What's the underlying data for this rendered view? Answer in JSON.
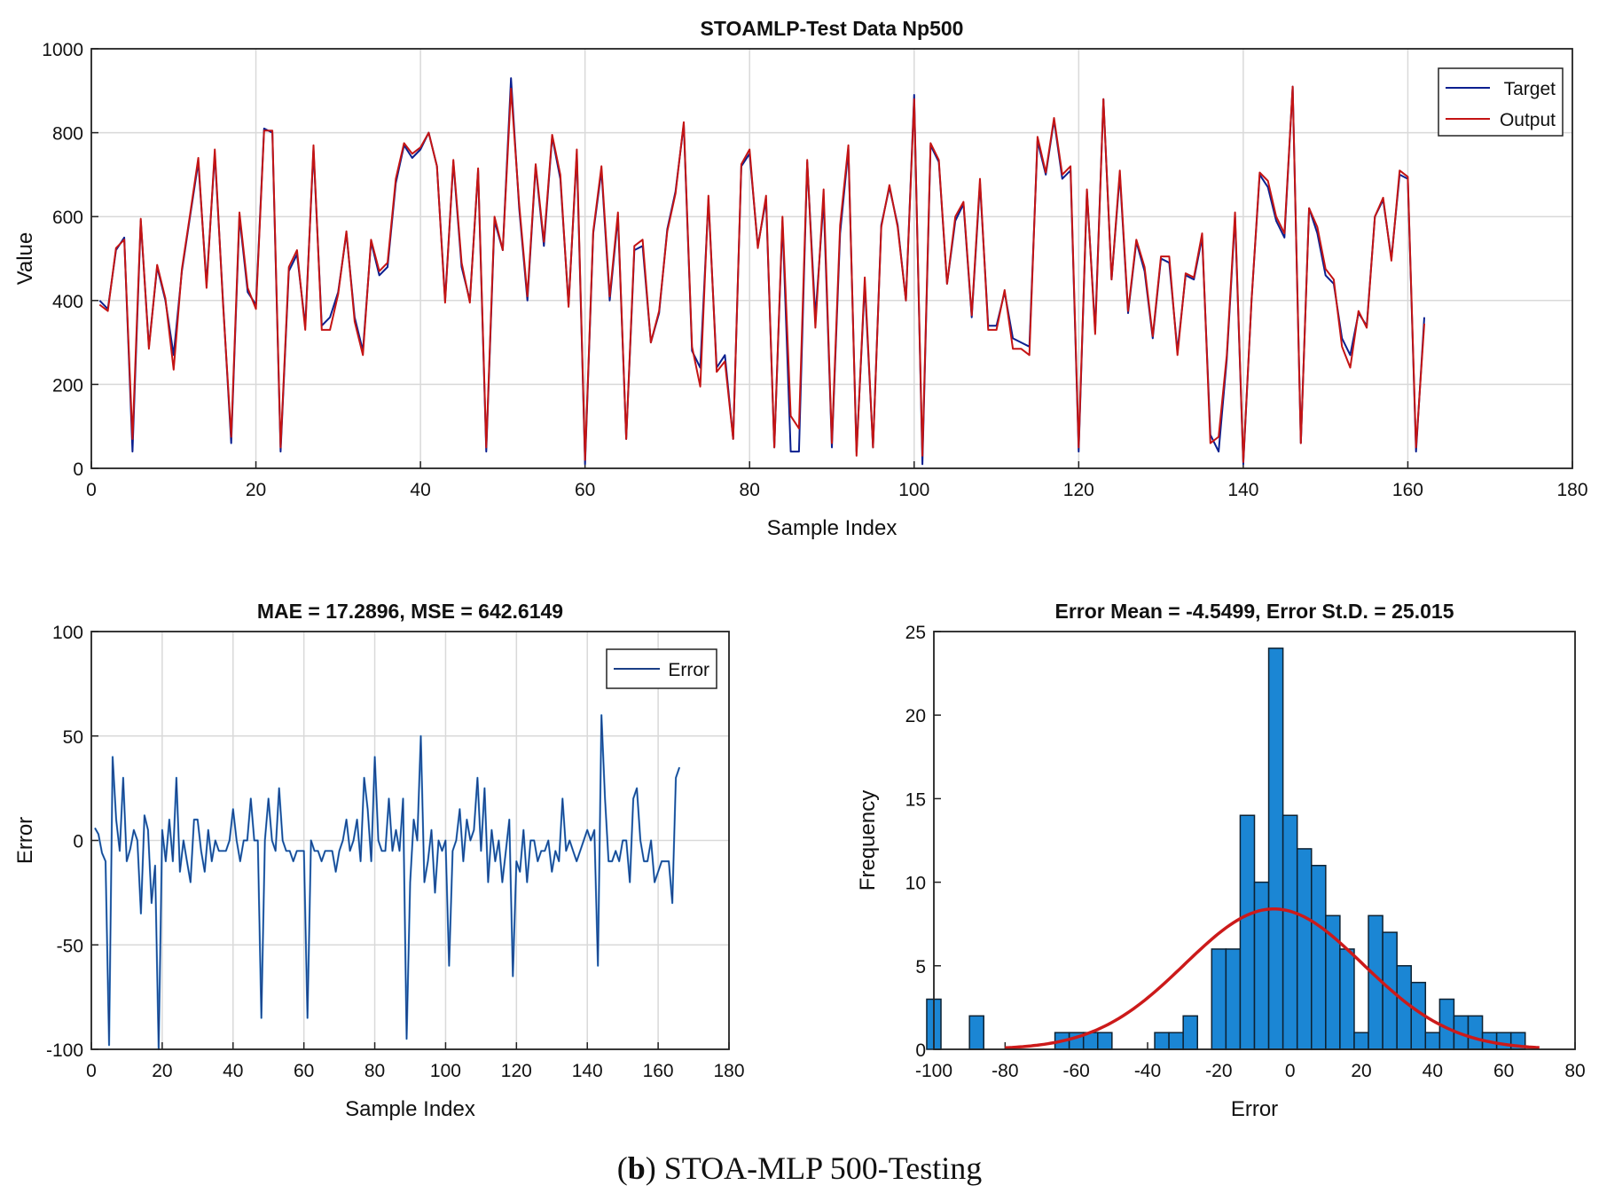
{
  "caption": {
    "letter": "b",
    "text": "STOA-MLP 500-Testing"
  },
  "chart_data": [
    {
      "type": "line",
      "title": "STOAMLP-Test Data Np500",
      "xlabel": "Sample Index",
      "ylabel": "Value",
      "xlim": [
        0,
        180
      ],
      "ylim": [
        0,
        1000
      ],
      "xticks": [
        0,
        20,
        40,
        60,
        80,
        100,
        120,
        140,
        160,
        180
      ],
      "yticks": [
        0,
        200,
        400,
        600,
        800,
        1000
      ],
      "grid": true,
      "legend_position": "top-right",
      "colors": {
        "target": "#0b1f8f",
        "output": "#c41414"
      },
      "series": [
        {
          "name": "Target",
          "values": [
            400,
            380,
            520,
            550,
            40,
            590,
            290,
            480,
            400,
            270,
            470,
            600,
            730,
            440,
            750,
            400,
            60,
            600,
            420,
            390,
            810,
            800,
            40,
            470,
            510,
            340,
            760,
            340,
            360,
            420,
            560,
            360,
            280,
            540,
            460,
            480,
            680,
            770,
            740,
            760,
            800,
            720,
            400,
            730,
            480,
            400,
            710,
            40,
            590,
            520,
            930,
            620,
            400,
            720,
            530,
            790,
            690,
            390,
            750,
            10,
            560,
            710,
            400,
            600,
            70,
            520,
            530,
            300,
            370,
            570,
            660,
            820,
            280,
            240,
            640,
            240,
            270,
            70,
            720,
            750,
            530,
            640,
            50,
            590,
            40,
            40,
            730,
            360,
            640,
            50,
            560,
            760,
            40,
            440,
            50,
            580,
            670,
            580,
            400,
            890,
            10,
            770,
            730,
            440,
            590,
            630,
            360,
            680,
            340,
            340,
            420,
            310,
            300,
            290,
            780,
            700,
            830,
            690,
            710,
            40,
            660,
            330,
            880,
            450,
            700,
            370,
            540,
            470,
            310,
            500,
            490,
            280,
            460,
            450,
            550,
            80,
            40,
            260,
            600,
            10,
            400,
            700,
            670,
            590,
            550,
            910,
            60,
            620,
            560,
            460,
            440,
            310,
            270,
            370,
            340,
            600,
            640,
            500,
            700,
            690,
            40,
            360
          ],
          "color": "target"
        },
        {
          "name": "Output",
          "values": [
            390,
            375,
            525,
            545,
            70,
            595,
            285,
            485,
            405,
            235,
            475,
            605,
            740,
            430,
            760,
            395,
            75,
            610,
            430,
            380,
            805,
            805,
            50,
            480,
            520,
            330,
            770,
            330,
            330,
            415,
            565,
            350,
            270,
            545,
            470,
            490,
            690,
            775,
            750,
            765,
            800,
            720,
            395,
            735,
            490,
            395,
            715,
            50,
            600,
            520,
            905,
            630,
            410,
            725,
            540,
            795,
            700,
            385,
            760,
            20,
            565,
            720,
            410,
            610,
            70,
            530,
            545,
            300,
            375,
            565,
            655,
            825,
            290,
            195,
            650,
            230,
            255,
            70,
            725,
            760,
            525,
            650,
            50,
            600,
            125,
            95,
            735,
            335,
            665,
            60,
            580,
            770,
            30,
            455,
            50,
            575,
            675,
            575,
            400,
            880,
            30,
            775,
            735,
            440,
            600,
            635,
            365,
            690,
            330,
            330,
            425,
            285,
            285,
            270,
            790,
            705,
            835,
            700,
            720,
            50,
            665,
            320,
            880,
            450,
            710,
            375,
            545,
            480,
            315,
            505,
            505,
            270,
            465,
            455,
            560,
            60,
            75,
            270,
            610,
            15,
            400,
            705,
            685,
            600,
            560,
            910,
            60,
            620,
            575,
            475,
            450,
            290,
            240,
            375,
            335,
            600,
            645,
            495,
            710,
            695,
            50,
            345
          ],
          "color": "output"
        }
      ]
    },
    {
      "type": "line",
      "title": "MAE = 17.2896, MSE = 642.6149",
      "xlabel": "Sample Index",
      "ylabel": "Error",
      "xlim": [
        0,
        180
      ],
      "ylim": [
        -100,
        100
      ],
      "xticks": [
        0,
        20,
        40,
        60,
        80,
        100,
        120,
        140,
        160,
        180
      ],
      "yticks": [
        -100,
        -50,
        0,
        50,
        100
      ],
      "grid": true,
      "legend_position": "top-right",
      "colors": {
        "error": "#1a3e86",
        "error_light": "#3d8fd6"
      },
      "series": [
        {
          "name": "Error",
          "values": [
            6,
            3,
            -6,
            -10,
            -98,
            40,
            10,
            -5,
            30,
            -10,
            -4,
            5,
            0,
            -35,
            12,
            5,
            -30,
            -12,
            -100,
            5,
            -10,
            10,
            -10,
            30,
            -15,
            0,
            -10,
            -20,
            10,
            10,
            -5,
            -15,
            5,
            -10,
            0,
            -5,
            -5,
            -5,
            0,
            15,
            0,
            -10,
            0,
            0,
            20,
            0,
            0,
            -85,
            0,
            20,
            0,
            -5,
            25,
            0,
            -5,
            -5,
            -10,
            -5,
            -5,
            -5,
            -85,
            0,
            -5,
            -5,
            -10,
            -5,
            -5,
            -5,
            -15,
            -5,
            0,
            10,
            -5,
            0,
            10,
            -10,
            30,
            15,
            -10,
            40,
            0,
            -5,
            -5,
            20,
            -5,
            5,
            -5,
            20,
            -95,
            -20,
            10,
            0,
            50,
            -20,
            -10,
            5,
            -25,
            0,
            -5,
            0,
            -60,
            -5,
            0,
            15,
            -10,
            10,
            0,
            5,
            30,
            -5,
            25,
            -20,
            5,
            -10,
            0,
            -20,
            -5,
            10,
            -65,
            -10,
            -15,
            5,
            -20,
            0,
            0,
            -10,
            -5,
            -5,
            0,
            -15,
            -5,
            -10,
            20,
            -5,
            0,
            -5,
            -10,
            -5,
            0,
            5,
            0,
            5,
            -60,
            60,
            20,
            -10,
            -10,
            -5,
            -10,
            0,
            0,
            -20,
            20,
            25,
            0,
            -10,
            -10,
            0,
            -20,
            -15,
            -10,
            -10,
            -10,
            -30,
            30,
            35
          ]
        }
      ]
    },
    {
      "type": "bar",
      "title": "Error Mean = -4.5499, Error St.D. = 25.015",
      "xlabel": "Error",
      "ylabel": "Frequency",
      "xlim": [
        -100,
        80
      ],
      "ylim": [
        0,
        25
      ],
      "xticks": [
        -100,
        -80,
        -60,
        -40,
        -20,
        0,
        20,
        40,
        60,
        80
      ],
      "yticks": [
        0,
        5,
        10,
        15,
        20,
        25
      ],
      "grid": false,
      "bin_width": 4,
      "colors": {
        "bar": "#1b86d4",
        "bar_edge": "#0d2233",
        "fit": "#cc1a1a"
      },
      "bins": [
        {
          "left": -102,
          "count": 3
        },
        {
          "left": -90,
          "count": 2
        },
        {
          "left": -66,
          "count": 1
        },
        {
          "left": -62,
          "count": 1
        },
        {
          "left": -58,
          "count": 1
        },
        {
          "left": -54,
          "count": 1
        },
        {
          "left": -38,
          "count": 1
        },
        {
          "left": -34,
          "count": 1
        },
        {
          "left": -30,
          "count": 2
        },
        {
          "left": -26,
          "count": 0
        },
        {
          "left": -22,
          "count": 6
        },
        {
          "left": -18,
          "count": 6
        },
        {
          "left": -14,
          "count": 14
        },
        {
          "left": -10,
          "count": 10
        },
        {
          "left": -6,
          "count": 24
        },
        {
          "left": -2,
          "count": 14
        },
        {
          "left": 2,
          "count": 12
        },
        {
          "left": 6,
          "count": 11
        },
        {
          "left": 10,
          "count": 8
        },
        {
          "left": 14,
          "count": 6
        },
        {
          "left": 18,
          "count": 1
        },
        {
          "left": 22,
          "count": 8
        },
        {
          "left": 26,
          "count": 7
        },
        {
          "left": 30,
          "count": 5
        },
        {
          "left": 34,
          "count": 4
        },
        {
          "left": 38,
          "count": 1
        },
        {
          "left": 42,
          "count": 3
        },
        {
          "left": 46,
          "count": 2
        },
        {
          "left": 50,
          "count": 2
        },
        {
          "left": 54,
          "count": 1
        },
        {
          "left": 58,
          "count": 1
        },
        {
          "left": 62,
          "count": 1
        }
      ],
      "fit": {
        "type": "normal",
        "mean": -4.5499,
        "std": 25.015,
        "peak": 8.4,
        "x_range": [
          -80,
          70
        ]
      }
    }
  ]
}
